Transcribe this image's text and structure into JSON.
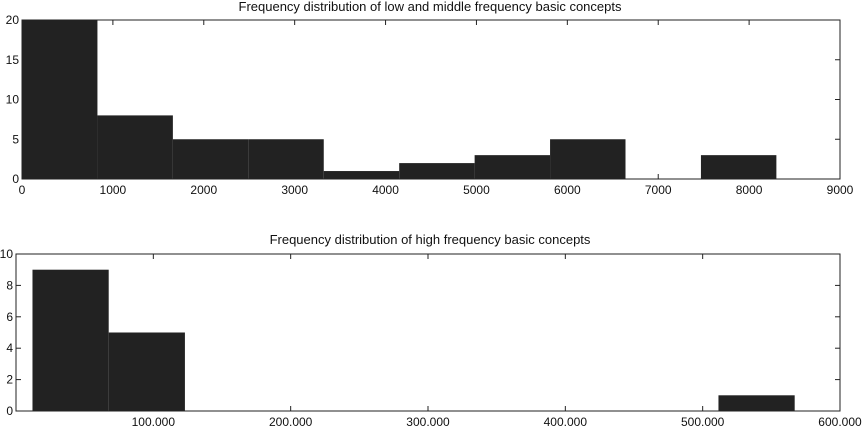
{
  "chart_data": [
    {
      "type": "bar",
      "title": "Frequency distribution of low and middle frequency basic concepts",
      "xlim": [
        0,
        9000
      ],
      "ylim": [
        0,
        20
      ],
      "xticks": [
        0,
        1000,
        2000,
        3000,
        4000,
        5000,
        6000,
        7000,
        8000,
        9000
      ],
      "xtick_labels": [
        "0",
        "1000",
        "2000",
        "3000",
        "4000",
        "5000",
        "6000",
        "7000",
        "8000",
        "9000"
      ],
      "yticks": [
        0,
        5,
        10,
        15,
        20
      ],
      "ytick_labels": [
        "0",
        "5",
        "10",
        "15",
        "20"
      ],
      "bins": [
        {
          "x0": 0,
          "x1": 830,
          "count": 20
        },
        {
          "x0": 830,
          "x1": 1660,
          "count": 8
        },
        {
          "x0": 1660,
          "x1": 2490,
          "count": 5
        },
        {
          "x0": 2490,
          "x1": 3320,
          "count": 5
        },
        {
          "x0": 3320,
          "x1": 4150,
          "count": 1
        },
        {
          "x0": 4150,
          "x1": 4980,
          "count": 2
        },
        {
          "x0": 4980,
          "x1": 5810,
          "count": 3
        },
        {
          "x0": 5810,
          "x1": 6640,
          "count": 5
        },
        {
          "x0": 6640,
          "x1": 7470,
          "count": 0
        },
        {
          "x0": 7470,
          "x1": 8300,
          "count": 3
        }
      ],
      "bar_color": "#222222",
      "grid": false
    },
    {
      "type": "bar",
      "title": "Frequency distribution of high frequency basic concepts",
      "xlim": [
        0,
        600000
      ],
      "ylim": [
        0,
        10
      ],
      "xticks": [
        100000,
        200000,
        300000,
        400000,
        500000,
        600000
      ],
      "xtick_labels": [
        "100.000",
        "200.000",
        "300.000",
        "400.000",
        "500.000",
        "600.000"
      ],
      "yticks": [
        0,
        2,
        4,
        6,
        8,
        10
      ],
      "ytick_labels": [
        "0",
        "2",
        "4",
        "6",
        "8",
        "10"
      ],
      "bins": [
        {
          "x0": 12000,
          "x1": 67500,
          "count": 9
        },
        {
          "x0": 67500,
          "x1": 123000,
          "count": 5
        },
        {
          "x0": 123000,
          "x1": 178500,
          "count": 0
        },
        {
          "x0": 178500,
          "x1": 234000,
          "count": 0
        },
        {
          "x0": 234000,
          "x1": 289500,
          "count": 0
        },
        {
          "x0": 289500,
          "x1": 345000,
          "count": 0
        },
        {
          "x0": 345000,
          "x1": 400500,
          "count": 0
        },
        {
          "x0": 400500,
          "x1": 456000,
          "count": 0
        },
        {
          "x0": 456000,
          "x1": 511500,
          "count": 0
        },
        {
          "x0": 511500,
          "x1": 567000,
          "count": 1
        }
      ],
      "bar_color": "#222222",
      "grid": false
    }
  ]
}
